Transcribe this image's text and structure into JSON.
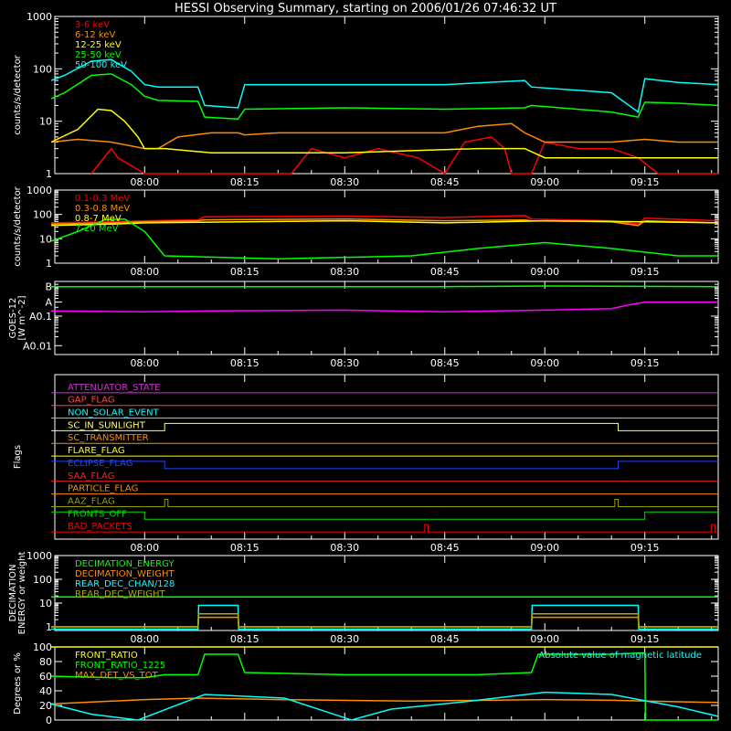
{
  "title": "HESSI Observing Summary, starting on 2006/01/26 07:46:32 UT",
  "time_axis": {
    "start": "07:46:32",
    "end": "09:26:00",
    "tick_labels": [
      "08:00",
      "08:15",
      "08:30",
      "08:45",
      "09:00",
      "09:15"
    ],
    "tick_times": [
      "08:00",
      "08:15",
      "08:30",
      "08:45",
      "09:00",
      "09:15"
    ]
  },
  "chart_data": [
    {
      "id": "panel1",
      "type": "line",
      "ylabel": "counts/s/detector",
      "yscale": "log",
      "ylim": [
        1,
        1000
      ],
      "ytick_labels": [
        "1",
        "10",
        "100",
        "1000"
      ],
      "ytick_values": [
        1,
        10,
        100,
        1000
      ],
      "legend_position": "top-left",
      "series": [
        {
          "name": "3-6 keV",
          "color": "#ff0000",
          "x": [
            "07:52",
            "07:55",
            "07:56",
            "08:00",
            "08:02",
            "08:22",
            "08:25",
            "08:30",
            "08:35",
            "08:41",
            "08:45",
            "08:48",
            "08:52",
            "08:54",
            "08:55",
            "08:58",
            "09:00",
            "09:05",
            "09:10",
            "09:14",
            "09:17",
            "09:20",
            "09:24",
            "09:26"
          ],
          "y": [
            1,
            3,
            2,
            1,
            1,
            1,
            3,
            2,
            3,
            2,
            1,
            4,
            5,
            3,
            1,
            1,
            4,
            3,
            3,
            2,
            1,
            1,
            1,
            1
          ]
        },
        {
          "name": "6-12 keV",
          "color": "#ff8c00",
          "x": [
            "07:46",
            "07:50",
            "07:55",
            "08:00",
            "08:02",
            "08:05",
            "08:10",
            "08:14",
            "08:15",
            "08:20",
            "08:30",
            "08:40",
            "08:45",
            "08:50",
            "08:55",
            "08:57",
            "09:00",
            "09:10",
            "09:15",
            "09:20",
            "09:26"
          ],
          "y": [
            4,
            4.5,
            4,
            3,
            3,
            5,
            6,
            6,
            5.5,
            6,
            6,
            6,
            6,
            8,
            9,
            6,
            4,
            4,
            4.5,
            4,
            4
          ]
        },
        {
          "name": "12-25 keV",
          "color": "#ffff00",
          "x": [
            "07:46",
            "07:50",
            "07:53",
            "07:55",
            "07:57",
            "07:59",
            "08:00",
            "08:03",
            "08:10",
            "08:30",
            "08:50",
            "08:57",
            "09:00",
            "09:15",
            "09:26"
          ],
          "y": [
            4,
            7,
            17,
            16,
            10,
            5,
            3,
            3,
            2.5,
            2.5,
            3,
            3,
            2,
            2,
            2
          ]
        },
        {
          "name": "25-50 keV",
          "color": "#00ff00",
          "x": [
            "07:46",
            "07:48",
            "07:52",
            "07:55",
            "07:58",
            "08:00",
            "08:02",
            "08:08",
            "08:09",
            "08:14",
            "08:15",
            "08:30",
            "08:45",
            "08:57",
            "08:58",
            "09:10",
            "09:14",
            "09:15",
            "09:20",
            "09:26"
          ],
          "y": [
            27,
            35,
            75,
            80,
            50,
            30,
            25,
            24,
            12,
            11,
            17,
            18,
            17,
            18,
            20,
            15,
            12,
            23,
            22,
            20
          ]
        },
        {
          "name": "50-100 keV",
          "color": "#00ffff",
          "x": [
            "07:46",
            "07:48",
            "07:52",
            "07:55",
            "07:58",
            "08:00",
            "08:02",
            "08:08",
            "08:09",
            "08:14",
            "08:15",
            "08:30",
            "08:45",
            "08:57",
            "08:58",
            "09:10",
            "09:14",
            "09:15",
            "09:20",
            "09:26"
          ],
          "y": [
            60,
            75,
            140,
            150,
            90,
            50,
            45,
            45,
            20,
            18,
            50,
            50,
            50,
            60,
            45,
            35,
            15,
            65,
            55,
            50
          ]
        }
      ]
    },
    {
      "id": "panel2",
      "type": "line",
      "ylabel": "counts/s/detector",
      "yscale": "log",
      "ylim": [
        1,
        1000
      ],
      "ytick_labels": [
        "1",
        "10",
        "100",
        "1000"
      ],
      "ytick_values": [
        1,
        10,
        100,
        1000
      ],
      "legend_position": "top-left",
      "series": [
        {
          "name": "0.1-0.3 MeV",
          "color": "#ff0000",
          "x": [
            "07:46",
            "07:55",
            "08:00",
            "08:08",
            "08:09",
            "08:30",
            "08:45",
            "08:57",
            "08:58",
            "09:10",
            "09:14",
            "09:15",
            "09:26"
          ],
          "y": [
            45,
            50,
            55,
            60,
            80,
            85,
            75,
            90,
            65,
            55,
            40,
            70,
            55
          ]
        },
        {
          "name": "0.3-0.8 MeV",
          "color": "#ff8c00",
          "x": [
            "07:46",
            "07:55",
            "08:00",
            "08:08",
            "08:09",
            "08:30",
            "08:45",
            "08:57",
            "08:58",
            "09:10",
            "09:14",
            "09:15",
            "09:26"
          ],
          "y": [
            40,
            45,
            50,
            55,
            60,
            65,
            55,
            60,
            55,
            50,
            35,
            55,
            45
          ]
        },
        {
          "name": "0.8-7 MeV",
          "color": "#ffff00",
          "x": [
            "07:46",
            "07:55",
            "08:00",
            "08:30",
            "08:45",
            "09:00",
            "09:15",
            "09:26"
          ],
          "y": [
            35,
            40,
            45,
            55,
            45,
            55,
            50,
            45
          ]
        },
        {
          "name": "7-20 MeV",
          "color": "#00ff00",
          "x": [
            "07:46",
            "07:50",
            "07:54",
            "07:57",
            "08:00",
            "08:03",
            "08:20",
            "08:40",
            "08:50",
            "09:00",
            "09:10",
            "09:20",
            "09:26"
          ],
          "y": [
            8,
            20,
            60,
            65,
            20,
            2,
            1.5,
            2,
            4,
            7,
            4,
            2,
            2
          ]
        }
      ]
    },
    {
      "id": "panel3",
      "type": "line",
      "ylabel": "GOES-12 [W m^-2]",
      "yscale": "log",
      "ylim": [
        0.005,
        1.5
      ],
      "ytick_labels": [
        "A0.01",
        "A0.1",
        "A",
        "B"
      ],
      "ytick_values": [
        0.01,
        0.1,
        0.3,
        1.0
      ],
      "series": [
        {
          "name": "",
          "color": "#ff00ff",
          "x": [
            "07:46",
            "08:00",
            "08:10",
            "08:30",
            "08:45",
            "09:00",
            "09:10",
            "09:13",
            "09:15",
            "09:26"
          ],
          "y": [
            0.15,
            0.14,
            0.15,
            0.16,
            0.14,
            0.16,
            0.18,
            0.25,
            0.3,
            0.3
          ]
        },
        {
          "name": "",
          "color": "#00ff00",
          "x": [
            "07:46",
            "08:45",
            "09:00",
            "09:26"
          ],
          "y": [
            1.0,
            1.0,
            1.05,
            1.0
          ]
        }
      ]
    },
    {
      "id": "panel4",
      "type": "line",
      "ylabel": "Flags",
      "series": [
        {
          "name": "ATTENUATOR_STATE",
          "color": "#cc33cc",
          "state_changes": [
            [
              "07:46",
              0
            ]
          ]
        },
        {
          "name": "GAP_FLAG",
          "color": "#ff4444",
          "state_changes": [
            [
              "07:46",
              0
            ]
          ]
        },
        {
          "name": "NON_SOLAR_EVENT",
          "color": "#00ffff",
          "state_changes": [
            [
              "07:46",
              0
            ]
          ]
        },
        {
          "name": "SC_IN_SUNLIGHT",
          "color": "#ffff66",
          "state_changes": [
            [
              "07:46",
              0
            ],
            [
              "08:03",
              1
            ],
            [
              "09:11",
              0
            ]
          ]
        },
        {
          "name": "SC_TRANSMITTER",
          "color": "#ff8c00",
          "state_changes": [
            [
              "07:46",
              0
            ]
          ]
        },
        {
          "name": "FLARE_FLAG",
          "color": "#ffff00",
          "state_changes": [
            [
              "07:46",
              0
            ]
          ]
        },
        {
          "name": "ECLIPSE_FLAG",
          "color": "#2244ff",
          "state_changes": [
            [
              "07:46",
              1
            ],
            [
              "08:03",
              0
            ],
            [
              "09:11",
              1
            ]
          ]
        },
        {
          "name": "SAA_FLAG",
          "color": "#ff2222",
          "state_changes": [
            [
              "07:46",
              0
            ]
          ]
        },
        {
          "name": "PARTICLE_FLAG",
          "color": "#ff8c00",
          "state_changes": [
            [
              "07:46",
              0
            ]
          ]
        },
        {
          "name": "AAZ_FLAG",
          "color": "#999900",
          "state_changes": [
            [
              "07:46",
              0
            ],
            [
              "08:03",
              1
            ],
            [
              "08:03.5",
              0
            ],
            [
              "09:10.5",
              1
            ],
            [
              "09:11",
              0
            ]
          ]
        },
        {
          "name": "FRONTS_OFF",
          "color": "#00dd00",
          "state_changes": [
            [
              "07:46",
              1
            ],
            [
              "08:00",
              0
            ],
            [
              "09:15",
              1
            ]
          ]
        },
        {
          "name": "BAD_PACKETS",
          "color": "#ff0000",
          "state_changes": [
            [
              "07:46",
              0
            ],
            [
              "08:42",
              1
            ],
            [
              "08:42.5",
              0
            ],
            [
              "09:25",
              1
            ],
            [
              "09:25.5",
              0
            ]
          ]
        }
      ]
    },
    {
      "id": "panel5",
      "type": "line",
      "ylabel": "DECIMATION ENERGY or weight",
      "yscale": "log",
      "ylim": [
        0.7,
        1000
      ],
      "ytick_labels": [
        "1",
        "10",
        "100",
        "1000"
      ],
      "ytick_values": [
        1,
        10,
        100,
        1000
      ],
      "series": [
        {
          "name": "DECIMATION_ENERGY",
          "color": "#00ff00",
          "x": [
            "07:46",
            "09:26"
          ],
          "y": [
            18,
            18
          ]
        },
        {
          "name": "DECIMATION_WEIGHT",
          "color": "#ff8c00",
          "x": [
            "07:46",
            "08:08",
            "08:08.1",
            "08:14",
            "08:14.1",
            "08:58",
            "08:58.1",
            "09:14",
            "09:14.1",
            "09:26"
          ],
          "y": [
            1,
            1,
            2.5,
            2.5,
            1,
            1,
            2.5,
            2.5,
            1,
            1
          ]
        },
        {
          "name": "REAR_DEC_CHAN/128",
          "color": "#00ffff",
          "x": [
            "07:46",
            "08:08",
            "08:08.1",
            "08:14",
            "08:14.1",
            "08:58",
            "08:58.1",
            "09:14",
            "09:14.1",
            "09:26"
          ],
          "y": [
            0.8,
            0.8,
            8,
            8,
            0.8,
            0.8,
            8,
            8,
            0.8,
            0.8
          ]
        },
        {
          "name": "REAR_DEC_WEIGHT",
          "color": "#aaaa00",
          "x": [
            "07:46",
            "08:08",
            "08:08.1",
            "08:14",
            "08:14.1",
            "08:58",
            "08:58.1",
            "09:14",
            "09:14.1",
            "09:26"
          ],
          "y": [
            1,
            1,
            3.5,
            3.5,
            1,
            1,
            3.5,
            3.5,
            1,
            1
          ]
        }
      ]
    },
    {
      "id": "panel6",
      "type": "line",
      "ylabel": "Degrees or %",
      "ylim": [
        0,
        100
      ],
      "ytick_labels": [
        "0",
        "20",
        "40",
        "60",
        "80",
        "100"
      ],
      "ytick_values": [
        0,
        20,
        40,
        60,
        80,
        100
      ],
      "legend_position": "top-left",
      "annotation": "Absolute value of magnetic latitude",
      "annotation_color": "#00ffff",
      "series": [
        {
          "name": "FRONT_RATIO",
          "color": "#ffff00",
          "x": [
            "07:46",
            "09:26"
          ],
          "y": [
            100,
            100
          ]
        },
        {
          "name": "FRONT_RATIO_1225",
          "color": "#00ff00",
          "x": [
            "07:46",
            "07:55",
            "08:00",
            "08:03",
            "08:08",
            "08:09",
            "08:14",
            "08:15",
            "08:30",
            "08:50",
            "08:58",
            "08:59",
            "09:10",
            "09:15",
            "09:15.1",
            "09:26"
          ],
          "y": [
            60,
            58,
            58,
            62,
            62,
            90,
            90,
            65,
            62,
            62,
            65,
            90,
            90,
            92,
            0,
            0
          ]
        },
        {
          "name": "MAX_DET_VS_TOT",
          "color": "#ff8c00",
          "x": [
            "07:46",
            "08:00",
            "08:08",
            "08:20",
            "08:40",
            "09:00",
            "09:10",
            "09:20",
            "09:26"
          ],
          "y": [
            22,
            28,
            30,
            28,
            26,
            28,
            27,
            25,
            24
          ]
        },
        {
          "name": "",
          "color": "#00ffff",
          "x": [
            "07:46",
            "07:52",
            "07:59",
            "08:09",
            "08:21",
            "08:31",
            "08:37",
            "08:48",
            "09:00",
            "09:10",
            "09:20",
            "09:26"
          ],
          "y": [
            22,
            8,
            0,
            35,
            30,
            0,
            15,
            25,
            38,
            35,
            18,
            5
          ]
        }
      ]
    }
  ]
}
